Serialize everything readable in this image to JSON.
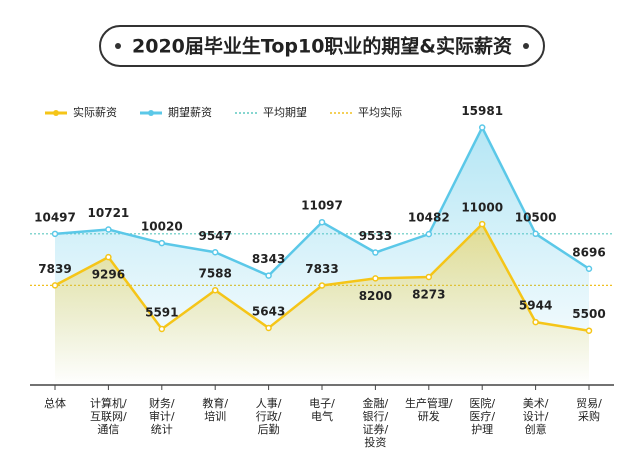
{
  "chart_data": {
    "type": "line",
    "title": "2020届毕业生Top10职业的期望&实际薪资",
    "categories": [
      "总体",
      "计算机/\n互联网/\n通信",
      "财务/\n审计/\n统计",
      "教育/\n培训",
      "人事/\n行政/\n后勤",
      "电子/\n电气",
      "金融/\n银行/\n证券/\n投资",
      "生产管理/\n研发",
      "医院/\n医疗/\n护理",
      "美术/\n设计/\n创意",
      "贸易/\n采购"
    ],
    "series": [
      {
        "name": "实际薪资",
        "color": "#f5c518",
        "values": [
          7839,
          9296,
          5591,
          7588,
          5643,
          7833,
          8200,
          8273,
          11000,
          5944,
          5500
        ]
      },
      {
        "name": "期望薪资",
        "color": "#5bc8e8",
        "values": [
          10497,
          10721,
          10020,
          9547,
          8343,
          11097,
          9533,
          10482,
          15981,
          10500,
          8696
        ]
      }
    ],
    "reference_lines": [
      {
        "name": "平均期望",
        "color": "#5fc9c0",
        "value": 10497
      },
      {
        "name": "平均实际",
        "color": "#f0c020",
        "value": 7839
      }
    ],
    "ylim": [
      2700,
      17400
    ],
    "grid": false
  }
}
